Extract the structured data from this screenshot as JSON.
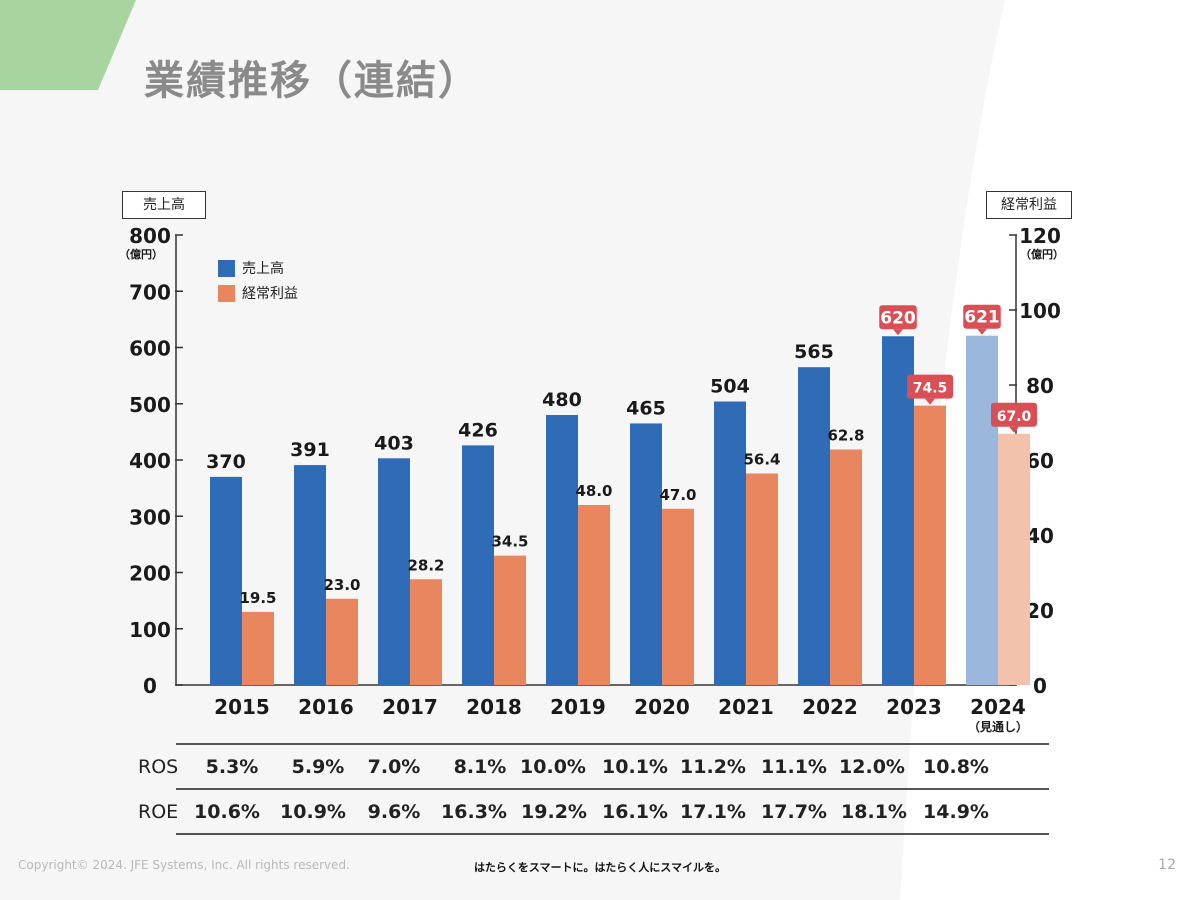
{
  "page_title": "業績推移（連結）",
  "left_axis_box": "売上高",
  "right_axis_box": "経常利益",
  "left_unit": "（億円）",
  "right_unit": "（億円）",
  "colors": {
    "sales": "#2f6cb5",
    "sales_forecast": "#9bb8dc",
    "profit": "#e8875f",
    "profit_forecast": "#f3c2ad",
    "highlight": "#d94f56",
    "green_accent": "#a8d4a0"
  },
  "chart_data": {
    "type": "bar",
    "categories": [
      "2015",
      "2016",
      "2017",
      "2018",
      "2019",
      "2020",
      "2021",
      "2022",
      "2023",
      "2024"
    ],
    "forecast_note": "（見通し）",
    "series": [
      {
        "name": "売上高",
        "axis": "left",
        "values": [
          370,
          391,
          403,
          426,
          480,
          465,
          504,
          565,
          620,
          621
        ]
      },
      {
        "name": "経常利益",
        "axis": "right",
        "values": [
          19.5,
          23.0,
          28.2,
          34.5,
          48.0,
          47.0,
          56.4,
          62.8,
          74.5,
          67.0
        ]
      }
    ],
    "left_ticks": [
      "0",
      "100",
      "200",
      "300",
      "400",
      "500",
      "600",
      "700",
      "800"
    ],
    "right_ticks": [
      "0",
      "20",
      "40",
      "60",
      "80",
      "100",
      "120"
    ],
    "ylim_left": [
      0,
      800
    ],
    "ylim_right": [
      0,
      120
    ],
    "highlighted": [
      "2023",
      "2024"
    ],
    "forecast_category": "2024",
    "legend_position": "top-left"
  },
  "metrics": [
    {
      "name": "ROS",
      "values": [
        "5.3%",
        "5.9%",
        "7.0%",
        "8.1%",
        "10.0%",
        "10.1%",
        "11.2%",
        "11.1%",
        "12.0%",
        "10.8%"
      ]
    },
    {
      "name": "ROE",
      "values": [
        "10.6%",
        "10.9%",
        "9.6%",
        "16.3%",
        "19.2%",
        "16.1%",
        "17.1%",
        "17.7%",
        "18.1%",
        "14.9%"
      ]
    }
  ],
  "footer": {
    "copyright": "Copyright© 2024. JFE Systems, Inc. All rights reserved.",
    "slogan": "はたらくをスマートに。はたらく人にスマイルを。",
    "page_number": "12"
  }
}
